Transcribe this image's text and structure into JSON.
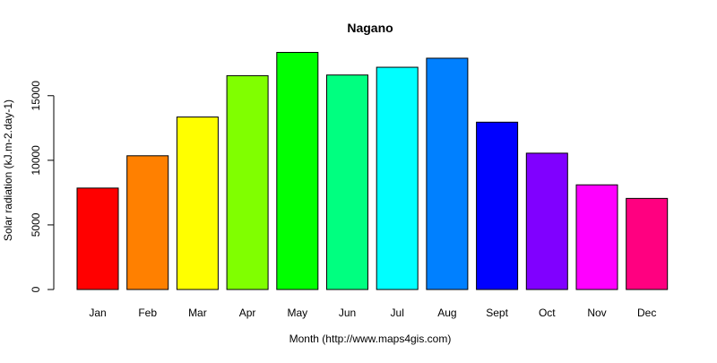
{
  "chart_data": {
    "type": "bar",
    "title": "Nagano",
    "xlabel": "Month (http://www.maps4gis.com)",
    "ylabel": "Solar radiation (kJ.m-2.day-1)",
    "categories": [
      "Jan",
      "Feb",
      "Mar",
      "Apr",
      "May",
      "Jun",
      "Jul",
      "Aug",
      "Sept",
      "Oct",
      "Nov",
      "Dec"
    ],
    "values": [
      7850,
      10350,
      13350,
      16550,
      18350,
      16600,
      17200,
      17900,
      12950,
      10550,
      8100,
      7050
    ],
    "colors": [
      "#FF0000",
      "#FF8000",
      "#FFFF00",
      "#80FF00",
      "#00FF00",
      "#00FF80",
      "#00FFFF",
      "#0080FF",
      "#0000FF",
      "#8000FF",
      "#FF00FF",
      "#FF0080"
    ],
    "yticks": [
      0,
      5000,
      10000,
      15000
    ],
    "ylim": [
      0,
      19000
    ],
    "grid": false
  }
}
